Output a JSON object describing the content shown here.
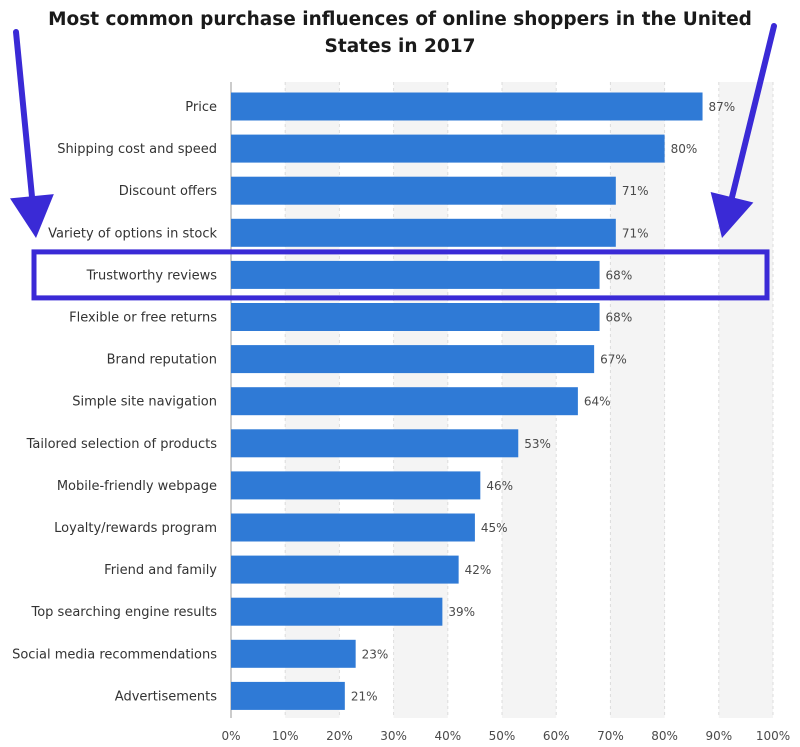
{
  "chart_data": {
    "type": "bar",
    "orientation": "horizontal",
    "title": "Most common purchase influences of online shoppers in the United States in 2017",
    "categories": [
      "Price",
      "Shipping cost and speed",
      "Discount offers",
      "Variety of options in stock",
      "Trustworthy reviews",
      "Flexible or free returns",
      "Brand reputation",
      "Simple site navigation",
      "Tailored selection of products",
      "Mobile-friendly webpage",
      "Loyalty/rewards program",
      "Friend and family",
      "Top searching engine results",
      "Social media recommendations",
      "Advertisements"
    ],
    "values": [
      87,
      80,
      71,
      71,
      68,
      68,
      67,
      64,
      53,
      46,
      45,
      42,
      39,
      23,
      21
    ],
    "value_labels": [
      "87%",
      "80%",
      "71%",
      "71%",
      "68%",
      "68%",
      "67%",
      "64%",
      "53%",
      "46%",
      "45%",
      "42%",
      "39%",
      "23%",
      "21%"
    ],
    "x_ticks": [
      "0%",
      "10%",
      "20%",
      "30%",
      "40%",
      "50%",
      "60%",
      "70%",
      "80%",
      "90%",
      "100%"
    ],
    "xlim": [
      0,
      100
    ],
    "grid": true,
    "highlighted_category": "Trustworthy reviews",
    "colors": {
      "bar": "#2f7ad6",
      "highlight": "#3a2ad6",
      "band_alt": "#f4f4f4",
      "grid": "#dcdcdc"
    }
  }
}
